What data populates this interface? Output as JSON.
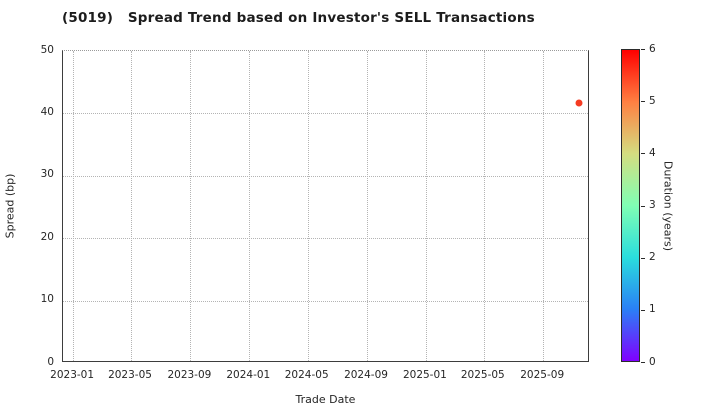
{
  "window": {
    "background": "#ffffff"
  },
  "chart_data": {
    "type": "scatter",
    "title": "(5019)   Spread Trend based on Investor's SELL Transactions",
    "xlabel": "Trade Date",
    "ylabel": "Spread (bp)",
    "ylim": [
      0,
      50
    ],
    "yticks": [
      0,
      10,
      20,
      30,
      40,
      50
    ],
    "xlim": [
      "2022-12-11",
      "2025-12-07"
    ],
    "xticks": [
      {
        "label": "2023-01",
        "date": "2023-01-01"
      },
      {
        "label": "2023-05",
        "date": "2023-05-01"
      },
      {
        "label": "2023-09",
        "date": "2023-09-01"
      },
      {
        "label": "2024-01",
        "date": "2024-01-01"
      },
      {
        "label": "2024-05",
        "date": "2024-05-01"
      },
      {
        "label": "2024-09",
        "date": "2024-09-01"
      },
      {
        "label": "2025-01",
        "date": "2025-01-01"
      },
      {
        "label": "2025-05",
        "date": "2025-05-01"
      },
      {
        "label": "2025-09",
        "date": "2025-09-01"
      }
    ],
    "grid": {
      "visible": true,
      "line_style": "dotted",
      "color": "#b4b4b4"
    },
    "legend_position": "none",
    "points": [
      {
        "date": "2025-11-15",
        "spread_bp": 41.7,
        "duration_years": 5.5,
        "color": "#f53b22"
      }
    ],
    "colorbar": {
      "label": "Duration (years)",
      "min": 0,
      "max": 6,
      "ticks": [
        0,
        1,
        2,
        3,
        4,
        5,
        6
      ],
      "colormap": "rainbow",
      "gradient_stops": [
        {
          "value": 0,
          "color": "#8000ff"
        },
        {
          "value": 1,
          "color": "#2a80f6"
        },
        {
          "value": 2,
          "color": "#2adddd"
        },
        {
          "value": 3,
          "color": "#80ffb4"
        },
        {
          "value": 4,
          "color": "#d4dd80"
        },
        {
          "value": 5,
          "color": "#ff8042"
        },
        {
          "value": 6,
          "color": "#ff0000"
        }
      ]
    },
    "axis_color": "#3d3d3d",
    "text_color": "#262626"
  }
}
